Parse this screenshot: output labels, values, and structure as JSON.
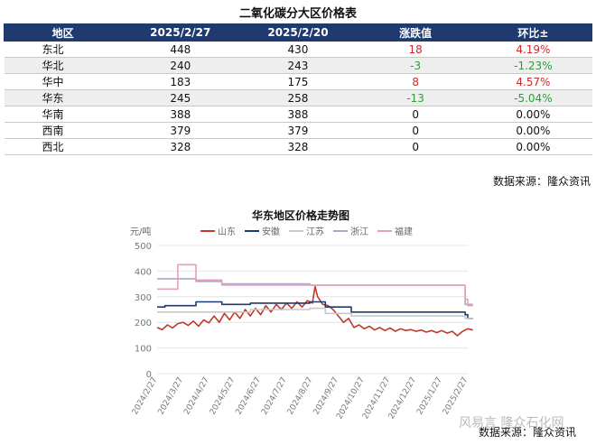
{
  "table": {
    "title": "二氧化碳分大区价格表",
    "headers": [
      "地区",
      "2025/2/27",
      "2025/2/20",
      "涨跌值",
      "环比±"
    ],
    "rows": [
      {
        "region": "东北",
        "a": "448",
        "b": "430",
        "change": "18",
        "pct": "4.19%",
        "dir": "up"
      },
      {
        "region": "华北",
        "a": "240",
        "b": "243",
        "change": "-3",
        "pct": "-1.23%",
        "dir": "down"
      },
      {
        "region": "华中",
        "a": "183",
        "b": "175",
        "change": "8",
        "pct": "4.57%",
        "dir": "up"
      },
      {
        "region": "华东",
        "a": "245",
        "b": "258",
        "change": "-13",
        "pct": "-5.04%",
        "dir": "down"
      },
      {
        "region": "华南",
        "a": "388",
        "b": "388",
        "change": "0",
        "pct": "0.00%",
        "dir": "flat"
      },
      {
        "region": "西南",
        "a": "379",
        "b": "379",
        "change": "0",
        "pct": "0.00%",
        "dir": "flat"
      },
      {
        "region": "西北",
        "a": "328",
        "b": "328",
        "change": "0",
        "pct": "0.00%",
        "dir": "flat"
      }
    ]
  },
  "source_top": "数据来源：隆众资讯",
  "source_bottom": "数据来源：隆众资讯",
  "watermark": "风易言 隆众石化网",
  "chart_data": {
    "type": "line",
    "title": "华东地区价格走势图",
    "ylabel": "元/吨",
    "ylim": [
      0,
      500
    ],
    "yticks": [
      0,
      100,
      200,
      300,
      400,
      500
    ],
    "xticks": [
      "2024/2/27",
      "2024/3/27",
      "2024/4/27",
      "2024/5/27",
      "2024/6/27",
      "2024/7/27",
      "2024/8/27",
      "2024/9/27",
      "2024/10/27",
      "2024/11/27",
      "2024/12/27",
      "2025/1/27",
      "2025/2/27"
    ],
    "grid": true,
    "legend_position": "top",
    "series": [
      {
        "name": "山东",
        "color": "#c0392b",
        "points": [
          [
            0,
            180
          ],
          [
            0.2,
            172
          ],
          [
            0.4,
            190
          ],
          [
            0.6,
            178
          ],
          [
            0.8,
            195
          ],
          [
            1.0,
            200
          ],
          [
            1.2,
            188
          ],
          [
            1.4,
            205
          ],
          [
            1.6,
            185
          ],
          [
            1.8,
            210
          ],
          [
            2.0,
            198
          ],
          [
            2.2,
            225
          ],
          [
            2.4,
            200
          ],
          [
            2.6,
            235
          ],
          [
            2.8,
            210
          ],
          [
            3.0,
            240
          ],
          [
            3.2,
            215
          ],
          [
            3.4,
            250
          ],
          [
            3.6,
            225
          ],
          [
            3.8,
            255
          ],
          [
            4.0,
            230
          ],
          [
            4.2,
            265
          ],
          [
            4.4,
            240
          ],
          [
            4.6,
            270
          ],
          [
            4.8,
            250
          ],
          [
            5.0,
            275
          ],
          [
            5.2,
            255
          ],
          [
            5.4,
            280
          ],
          [
            5.6,
            260
          ],
          [
            5.8,
            285
          ],
          [
            6.0,
            275
          ],
          [
            6.1,
            340
          ],
          [
            6.2,
            300
          ],
          [
            6.4,
            270
          ],
          [
            6.6,
            265
          ],
          [
            6.8,
            250
          ],
          [
            7.0,
            225
          ],
          [
            7.2,
            200
          ],
          [
            7.4,
            215
          ],
          [
            7.6,
            180
          ],
          [
            7.8,
            190
          ],
          [
            8.0,
            175
          ],
          [
            8.2,
            185
          ],
          [
            8.4,
            170
          ],
          [
            8.6,
            180
          ],
          [
            8.8,
            168
          ],
          [
            9.0,
            178
          ],
          [
            9.2,
            165
          ],
          [
            9.4,
            175
          ],
          [
            9.6,
            168
          ],
          [
            9.8,
            172
          ],
          [
            10.0,
            165
          ],
          [
            10.2,
            170
          ],
          [
            10.4,
            162
          ],
          [
            10.6,
            168
          ],
          [
            10.8,
            160
          ],
          [
            11.0,
            168
          ],
          [
            11.2,
            158
          ],
          [
            11.4,
            165
          ],
          [
            11.6,
            148
          ],
          [
            11.8,
            165
          ],
          [
            12.0,
            175
          ],
          [
            12.2,
            170
          ]
        ]
      },
      {
        "name": "安徽",
        "color": "#1f3a6e",
        "points": [
          [
            0,
            260
          ],
          [
            0.3,
            260
          ],
          [
            0.3,
            265
          ],
          [
            1.5,
            265
          ],
          [
            1.5,
            280
          ],
          [
            2.5,
            280
          ],
          [
            2.5,
            270
          ],
          [
            3.6,
            270
          ],
          [
            3.6,
            275
          ],
          [
            5.9,
            275
          ],
          [
            5.9,
            280
          ],
          [
            6.5,
            280
          ],
          [
            6.5,
            260
          ],
          [
            7.5,
            260
          ],
          [
            7.5,
            240
          ],
          [
            11.9,
            240
          ],
          [
            11.9,
            230
          ],
          [
            12.0,
            230
          ],
          [
            12.0,
            215
          ],
          [
            12.2,
            215
          ]
        ]
      },
      {
        "name": "江苏",
        "color": "#c8c8c8",
        "points": [
          [
            0,
            240
          ],
          [
            1.5,
            240
          ],
          [
            2.5,
            240
          ],
          [
            3.6,
            240
          ],
          [
            3.6,
            250
          ],
          [
            5.9,
            250
          ],
          [
            5.9,
            255
          ],
          [
            6.5,
            255
          ],
          [
            6.5,
            235
          ],
          [
            7.5,
            235
          ],
          [
            7.5,
            225
          ],
          [
            11.9,
            225
          ],
          [
            11.9,
            215
          ],
          [
            12.2,
            215
          ]
        ]
      },
      {
        "name": "浙江",
        "color": "#a8a8c8",
        "points": [
          [
            0,
            370
          ],
          [
            1.5,
            370
          ],
          [
            1.5,
            360
          ],
          [
            2.5,
            360
          ],
          [
            2.5,
            350
          ],
          [
            5.9,
            350
          ],
          [
            5.9,
            345
          ],
          [
            11.9,
            345
          ],
          [
            11.9,
            270
          ],
          [
            12.2,
            270
          ]
        ]
      },
      {
        "name": "福建",
        "color": "#e8a0b4",
        "points": [
          [
            0,
            330
          ],
          [
            0.8,
            330
          ],
          [
            0.8,
            425
          ],
          [
            1.5,
            425
          ],
          [
            1.5,
            365
          ],
          [
            2.5,
            365
          ],
          [
            2.5,
            345
          ],
          [
            11.9,
            345
          ],
          [
            11.9,
            290
          ],
          [
            12.0,
            290
          ],
          [
            12.0,
            265
          ],
          [
            12.2,
            265
          ]
        ]
      }
    ]
  }
}
